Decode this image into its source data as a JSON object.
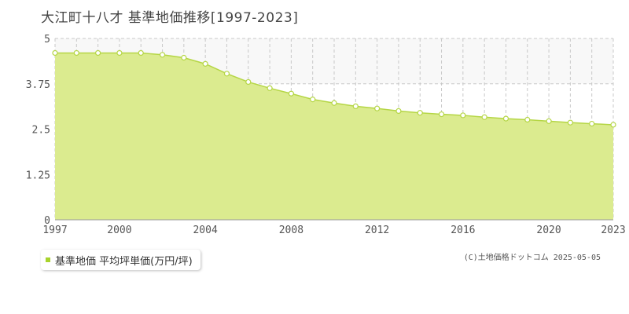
{
  "title": "大江町十八才 基準地価推移[1997-2023]",
  "credit": "(C)土地価格ドットコム 2025-05-05",
  "colors": {
    "fill": "#dbeb8f",
    "line": "#b5d645",
    "point_fill": "#ffffff",
    "point_stroke": "#b5d645",
    "grid": "#c8c8c8",
    "band": "#f8f8f8",
    "legend_swatch": "#a8d32c"
  },
  "chart_data": {
    "type": "area",
    "title": "大江町十八才 基準地価推移[1997-2023]",
    "xlabel": "",
    "ylabel": "",
    "xlim": [
      1997,
      2023
    ],
    "ylim": [
      0,
      5
    ],
    "yticks": [
      0,
      1.25,
      2.5,
      3.75,
      5
    ],
    "ytick_labels": [
      "0",
      "1.25",
      "2.5",
      "3.75",
      "5"
    ],
    "xticks": [
      1997,
      2000,
      2004,
      2008,
      2012,
      2016,
      2020,
      2023
    ],
    "grid": true,
    "legend": "bottom-left",
    "series": [
      {
        "name": "基準地価 平均坪単価(万円/坪)",
        "x": [
          1997,
          1998,
          1999,
          2000,
          2001,
          2002,
          2003,
          2004,
          2005,
          2006,
          2007,
          2008,
          2009,
          2010,
          2011,
          2012,
          2013,
          2014,
          2015,
          2016,
          2017,
          2018,
          2019,
          2020,
          2021,
          2022,
          2023
        ],
        "y": [
          4.6,
          4.6,
          4.6,
          4.6,
          4.6,
          4.55,
          4.47,
          4.3,
          4.03,
          3.8,
          3.63,
          3.48,
          3.32,
          3.22,
          3.13,
          3.07,
          3.0,
          2.95,
          2.91,
          2.88,
          2.83,
          2.79,
          2.76,
          2.72,
          2.68,
          2.65,
          2.62
        ]
      }
    ]
  }
}
